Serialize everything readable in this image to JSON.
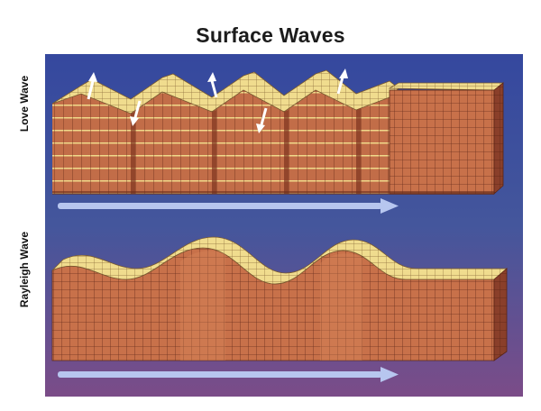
{
  "title": "Surface Waves",
  "love_wave": {
    "label": "Love Wave"
  },
  "rayleigh_wave": {
    "label": "Rayleigh Wave"
  },
  "colors": {
    "background_top": "#3a4fa6",
    "background_bottom": "#7a4a86",
    "block_face": "#c8714a",
    "block_top": "#f0dc8e",
    "block_side": "#8a3f2a",
    "grid_line": "#5a2a1a",
    "arrow": "#b7c6ef"
  },
  "icons": [
    "direction-arrow",
    "particle-motion-arrow"
  ]
}
